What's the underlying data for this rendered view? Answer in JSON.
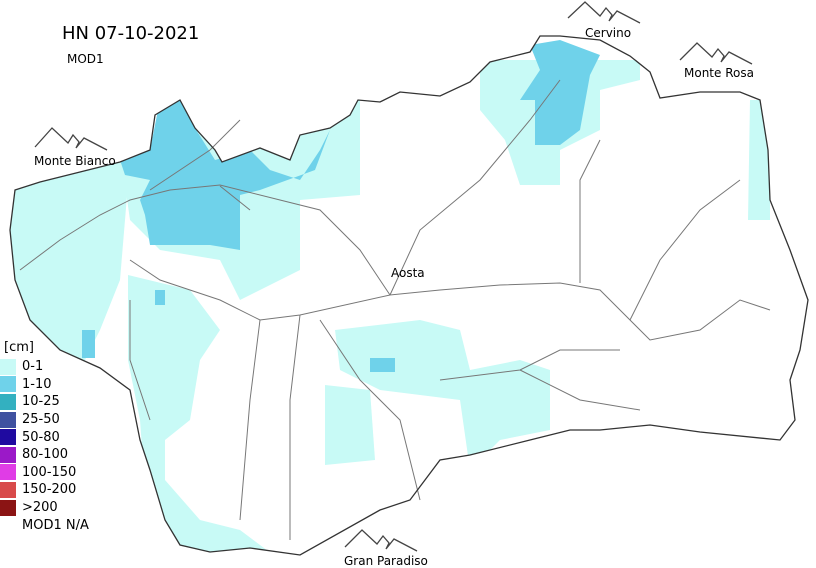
{
  "title": "HN 07-10-2021",
  "subtitle": "MOD1",
  "places": {
    "monte_bianco": "Monte Bianco",
    "cervino": "Cervino",
    "monte_rosa": "Monte Rosa",
    "aosta": "Aosta",
    "gran_paradiso": "Gran Paradiso"
  },
  "legend": {
    "unit": "[cm]",
    "items": [
      {
        "label": "0-1",
        "color": "#c8faf6"
      },
      {
        "label": "1-10",
        "color": "#6fd2ea"
      },
      {
        "label": "10-25",
        "color": "#33b0c0"
      },
      {
        "label": "25-50",
        "color": "#3f51a0"
      },
      {
        "label": "50-80",
        "color": "#1f0aa0"
      },
      {
        "label": "80-100",
        "color": "#9b19c8"
      },
      {
        "label": "100-150",
        "color": "#e03ce6"
      },
      {
        "label": "150-200",
        "color": "#d84a4a"
      },
      {
        "label": ">200",
        "color": "#8b1414"
      },
      {
        "label": "MOD1 N/A",
        "color": "#ffffff"
      }
    ]
  }
}
